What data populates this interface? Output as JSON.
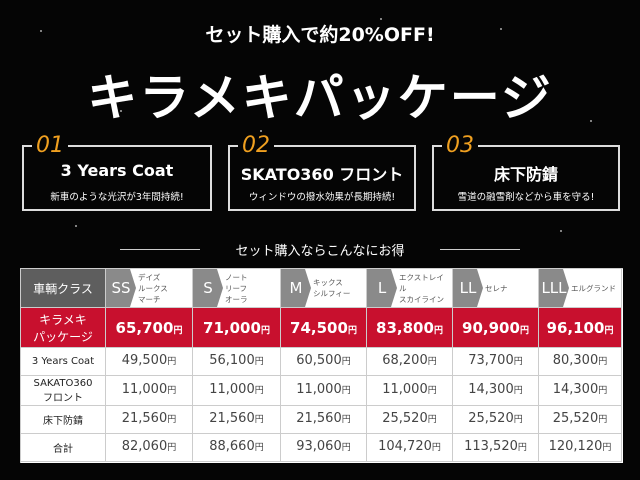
{
  "header": {
    "tagline": "セット購入で約20%OFF!",
    "title": "キラメキパッケージ"
  },
  "features": [
    {
      "number": "01",
      "title": "3 Years Coat",
      "text": "新車のような光沢が3年間持続!"
    },
    {
      "number": "02",
      "title": "SKATO360 フロント",
      "text": "ウィンドウの撥水効果が長期持続!"
    },
    {
      "number": "03",
      "title": "床下防錆",
      "text": "雪道の融雪剤などから車を守る!"
    }
  ],
  "section_title": "セット購入ならこんなにお得",
  "table": {
    "header": {
      "label": "車輌クラス",
      "classes": [
        {
          "code": "SS",
          "models": [
            "デイズ",
            "ルークス",
            "マーチ"
          ]
        },
        {
          "code": "S",
          "models": [
            "ノート",
            "リーフ",
            "オーラ"
          ]
        },
        {
          "code": "M",
          "models": [
            "キックス",
            "シルフィー"
          ]
        },
        {
          "code": "L",
          "models": [
            "エクストレイル",
            "スカイライン"
          ]
        },
        {
          "code": "LL",
          "models": [
            "セレナ"
          ]
        },
        {
          "code": "LLL",
          "models": [
            "エルグランド"
          ]
        }
      ]
    },
    "rows": [
      {
        "label": [
          "キラメキ",
          "パッケージ"
        ],
        "cells": [
          {
            "amount": "65,700",
            "unit": "円"
          },
          {
            "amount": "71,000",
            "unit": "円"
          },
          {
            "amount": "74,500",
            "unit": "円"
          },
          {
            "amount": "83,800",
            "unit": "円"
          },
          {
            "amount": "90,900",
            "unit": "円"
          },
          {
            "amount": "96,100",
            "unit": "円"
          }
        ]
      },
      {
        "label": [
          "3 Years Coat"
        ],
        "cells": [
          {
            "amount": "49,500",
            "unit": "円"
          },
          {
            "amount": "56,100",
            "unit": "円"
          },
          {
            "amount": "60,500",
            "unit": "円"
          },
          {
            "amount": "68,200",
            "unit": "円"
          },
          {
            "amount": "73,700",
            "unit": "円"
          },
          {
            "amount": "80,300",
            "unit": "円"
          }
        ]
      },
      {
        "label": [
          "SAKATO360",
          "フロント"
        ],
        "cells": [
          {
            "amount": "11,000",
            "unit": "円"
          },
          {
            "amount": "11,000",
            "unit": "円"
          },
          {
            "amount": "11,000",
            "unit": "円"
          },
          {
            "amount": "11,000",
            "unit": "円"
          },
          {
            "amount": "14,300",
            "unit": "円"
          },
          {
            "amount": "14,300",
            "unit": "円"
          }
        ]
      },
      {
        "label": [
          "床下防錆"
        ],
        "cells": [
          {
            "amount": "21,560",
            "unit": "円"
          },
          {
            "amount": "21,560",
            "unit": "円"
          },
          {
            "amount": "21,560",
            "unit": "円"
          },
          {
            "amount": "25,520",
            "unit": "円"
          },
          {
            "amount": "25,520",
            "unit": "円"
          },
          {
            "amount": "25,520",
            "unit": "円"
          }
        ]
      },
      {
        "label": [
          "合計"
        ],
        "cells": [
          {
            "amount": "82,060",
            "unit": "円"
          },
          {
            "amount": "88,660",
            "unit": "円"
          },
          {
            "amount": "93,060",
            "unit": "円"
          },
          {
            "amount": "104,720",
            "unit": "円"
          },
          {
            "amount": "113,520",
            "unit": "円"
          },
          {
            "amount": "120,120",
            "unit": "円"
          }
        ]
      }
    ]
  }
}
